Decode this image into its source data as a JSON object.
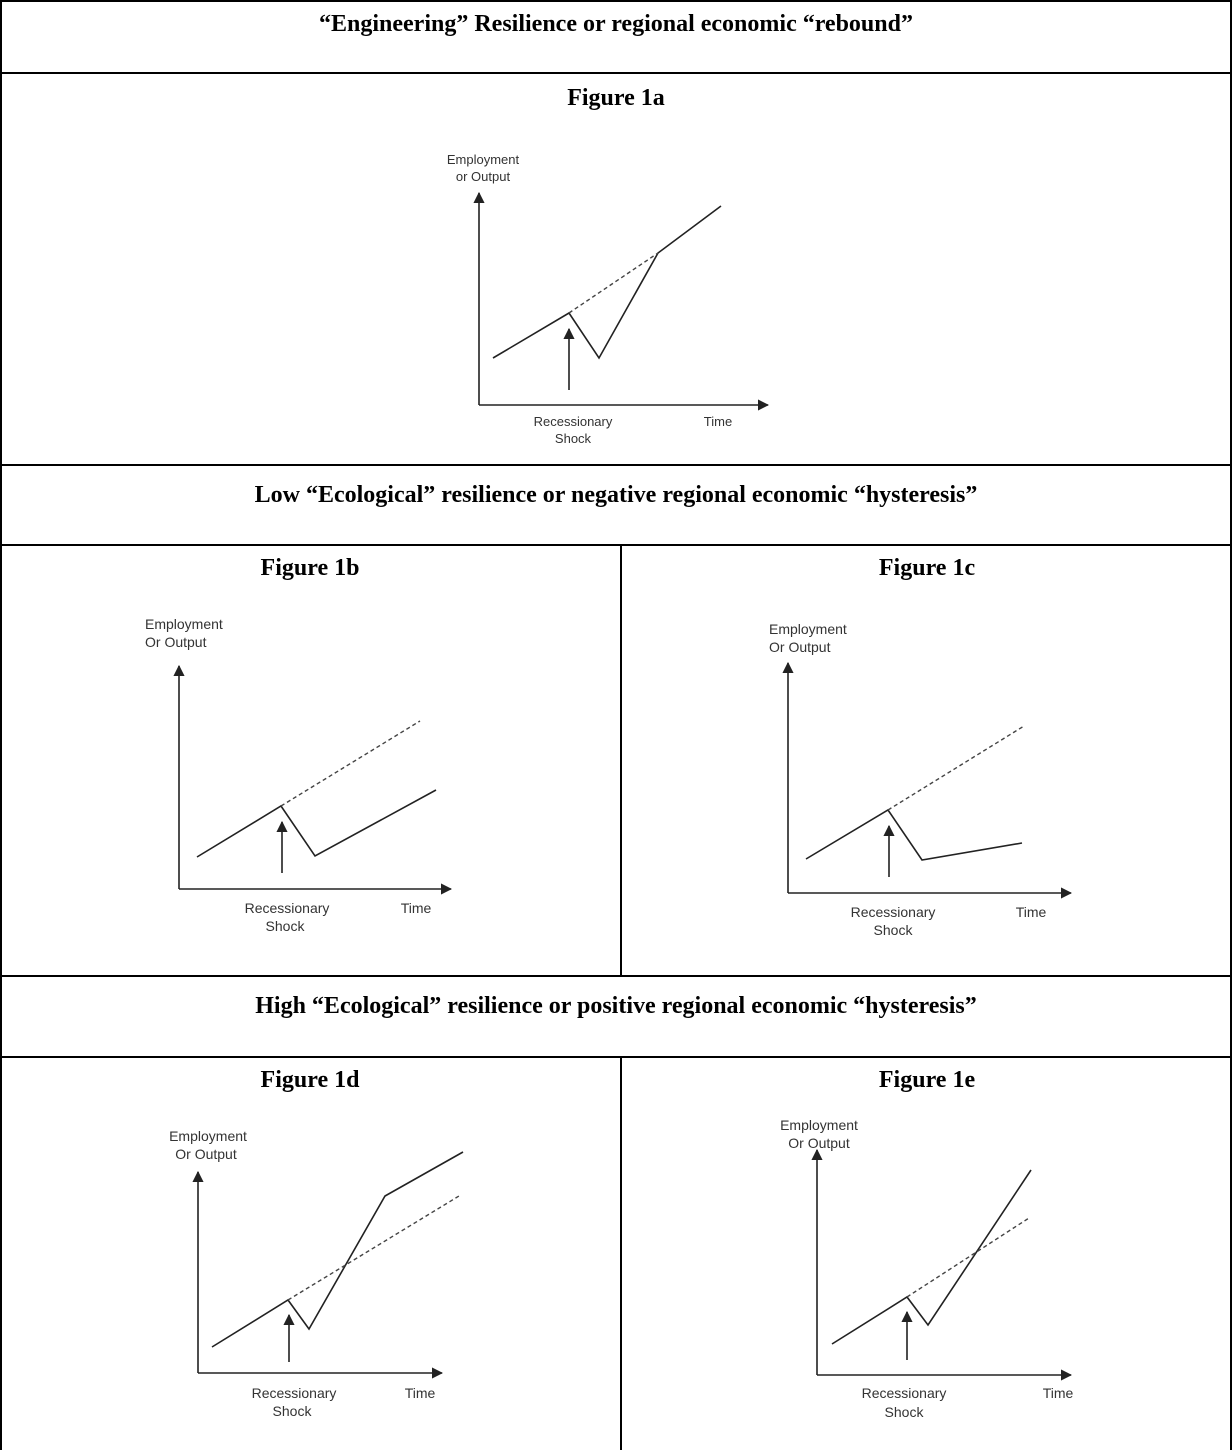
{
  "sections": {
    "engineering_header": "“Engineering” Resilience or regional economic “rebound”",
    "low_header": "Low “Ecological” resilience or negative regional economic “hysteresis”",
    "high_header": "High “Ecological” resilience or positive regional economic “hysteresis”"
  },
  "figures": {
    "fig1a": {
      "title": "Figure 1a",
      "y_label_1": "Employment",
      "y_label_2": "or Output",
      "shock_1": "Recessionary",
      "shock_2": "Shock",
      "x_label": "Time"
    },
    "fig1b": {
      "title": "Figure 1b",
      "y_label_1": "Employment",
      "y_label_2": "Or Output",
      "shock_1": "Recessionary",
      "shock_2": "Shock",
      "x_label": "Time"
    },
    "fig1c": {
      "title": "Figure 1c",
      "y_label_1": "Employment",
      "y_label_2": "Or Output",
      "shock_1": "Recessionary",
      "shock_2": "Shock",
      "x_label": "Time"
    },
    "fig1d": {
      "title": "Figure 1d",
      "y_label_1": "Employment",
      "y_label_2": "Or Output",
      "shock_1": "Recessionary",
      "shock_2": "Shock",
      "x_label": "Time"
    },
    "fig1e": {
      "title": "Figure 1e",
      "y_label_1": "Employment",
      "y_label_2": "Or Output",
      "shock_1": "Recessionary",
      "shock_2": "Shock",
      "x_label": "Time"
    }
  }
}
